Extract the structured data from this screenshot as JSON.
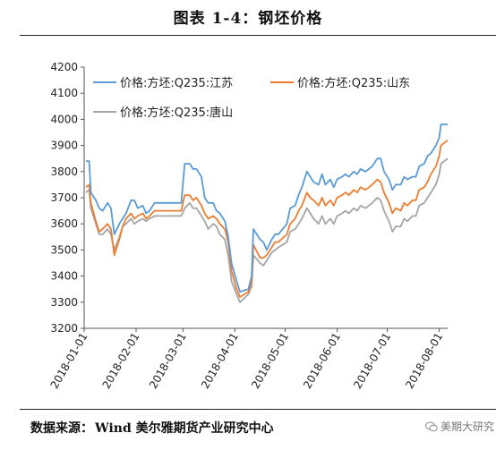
{
  "title": "图表 1-4：钢坯价格",
  "source": {
    "label": "数据来源：",
    "text": "Wind  美尔雅期货产业研究中心"
  },
  "watermark": "美期大研究",
  "chart_data": {
    "type": "line",
    "title": "",
    "ylim": [
      3200,
      4200
    ],
    "yticks": [
      3200,
      3300,
      3400,
      3500,
      3600,
      3700,
      3800,
      3900,
      4000,
      4100,
      4200
    ],
    "xticks": [
      "2018-01-01",
      "2018-02-01",
      "2018-03-01",
      "2018-04-01",
      "2018-05-01",
      "2018-06-01",
      "2018-07-01",
      "2018-08-01"
    ],
    "xlim": [
      "2018-01-01",
      "2018-08-06"
    ],
    "grid": false,
    "legend_position": "top-left",
    "colors": {
      "jiangsu": "#5B9BD5",
      "shandong": "#ED7D31",
      "tangshan": "#A5A5A5"
    },
    "series": [
      {
        "name": "价格:方坯:Q235:江苏",
        "points": [
          [
            "2018-01-02",
            3840
          ],
          [
            "2018-01-04",
            3840
          ],
          [
            "2018-01-05",
            3720
          ],
          [
            "2018-01-08",
            3690
          ],
          [
            "2018-01-10",
            3660
          ],
          [
            "2018-01-12",
            3650
          ],
          [
            "2018-01-15",
            3680
          ],
          [
            "2018-01-17",
            3660
          ],
          [
            "2018-01-19",
            3560
          ],
          [
            "2018-01-22",
            3600
          ],
          [
            "2018-01-24",
            3620
          ],
          [
            "2018-01-26",
            3640
          ],
          [
            "2018-01-29",
            3690
          ],
          [
            "2018-01-31",
            3690
          ],
          [
            "2018-02-02",
            3660
          ],
          [
            "2018-02-05",
            3670
          ],
          [
            "2018-02-07",
            3640
          ],
          [
            "2018-02-09",
            3650
          ],
          [
            "2018-02-12",
            3680
          ],
          [
            "2018-02-14",
            3680
          ],
          [
            "2018-02-26",
            3680
          ],
          [
            "2018-02-28",
            3680
          ],
          [
            "2018-03-02",
            3830
          ],
          [
            "2018-03-05",
            3830
          ],
          [
            "2018-03-07",
            3810
          ],
          [
            "2018-03-09",
            3810
          ],
          [
            "2018-03-12",
            3780
          ],
          [
            "2018-03-14",
            3700
          ],
          [
            "2018-03-16",
            3680
          ],
          [
            "2018-03-19",
            3680
          ],
          [
            "2018-03-21",
            3650
          ],
          [
            "2018-03-23",
            3640
          ],
          [
            "2018-03-26",
            3610
          ],
          [
            "2018-03-28",
            3550
          ],
          [
            "2018-03-30",
            3450
          ],
          [
            "2018-04-02",
            3380
          ],
          [
            "2018-04-04",
            3340
          ],
          [
            "2018-04-09",
            3350
          ],
          [
            "2018-04-11",
            3400
          ],
          [
            "2018-04-12",
            3580
          ],
          [
            "2018-04-16",
            3540
          ],
          [
            "2018-04-18",
            3530
          ],
          [
            "2018-04-20",
            3500
          ],
          [
            "2018-04-23",
            3540
          ],
          [
            "2018-04-25",
            3560
          ],
          [
            "2018-04-27",
            3560
          ],
          [
            "2018-05-02",
            3600
          ],
          [
            "2018-05-04",
            3660
          ],
          [
            "2018-05-07",
            3670
          ],
          [
            "2018-05-09",
            3710
          ],
          [
            "2018-05-11",
            3740
          ],
          [
            "2018-05-14",
            3800
          ],
          [
            "2018-05-16",
            3780
          ],
          [
            "2018-05-18",
            3760
          ],
          [
            "2018-05-21",
            3750
          ],
          [
            "2018-05-23",
            3790
          ],
          [
            "2018-05-25",
            3750
          ],
          [
            "2018-05-28",
            3770
          ],
          [
            "2018-05-30",
            3740
          ],
          [
            "2018-06-01",
            3770
          ],
          [
            "2018-06-04",
            3780
          ],
          [
            "2018-06-06",
            3790
          ],
          [
            "2018-06-08",
            3780
          ],
          [
            "2018-06-11",
            3800
          ],
          [
            "2018-06-13",
            3790
          ],
          [
            "2018-06-15",
            3810
          ],
          [
            "2018-06-18",
            3800
          ],
          [
            "2018-06-20",
            3810
          ],
          [
            "2018-06-22",
            3820
          ],
          [
            "2018-06-25",
            3850
          ],
          [
            "2018-06-27",
            3850
          ],
          [
            "2018-06-29",
            3800
          ],
          [
            "2018-07-02",
            3770
          ],
          [
            "2018-07-04",
            3730
          ],
          [
            "2018-07-06",
            3750
          ],
          [
            "2018-07-09",
            3750
          ],
          [
            "2018-07-11",
            3780
          ],
          [
            "2018-07-13",
            3770
          ],
          [
            "2018-07-16",
            3780
          ],
          [
            "2018-07-18",
            3780
          ],
          [
            "2018-07-20",
            3820
          ],
          [
            "2018-07-23",
            3830
          ],
          [
            "2018-07-25",
            3860
          ],
          [
            "2018-07-27",
            3870
          ],
          [
            "2018-07-30",
            3900
          ],
          [
            "2018-08-01",
            3930
          ],
          [
            "2018-08-02",
            3980
          ],
          [
            "2018-08-06",
            3980
          ]
        ]
      },
      {
        "name": "价格:方坯:Q235:山东",
        "points": [
          [
            "2018-01-02",
            3740
          ],
          [
            "2018-01-04",
            3750
          ],
          [
            "2018-01-05",
            3680
          ],
          [
            "2018-01-08",
            3610
          ],
          [
            "2018-01-10",
            3570
          ],
          [
            "2018-01-12",
            3580
          ],
          [
            "2018-01-15",
            3600
          ],
          [
            "2018-01-17",
            3580
          ],
          [
            "2018-01-19",
            3480
          ],
          [
            "2018-01-22",
            3540
          ],
          [
            "2018-01-24",
            3590
          ],
          [
            "2018-01-26",
            3620
          ],
          [
            "2018-01-29",
            3640
          ],
          [
            "2018-01-31",
            3620
          ],
          [
            "2018-02-02",
            3630
          ],
          [
            "2018-02-05",
            3640
          ],
          [
            "2018-02-07",
            3620
          ],
          [
            "2018-02-09",
            3630
          ],
          [
            "2018-02-12",
            3650
          ],
          [
            "2018-02-14",
            3650
          ],
          [
            "2018-02-26",
            3650
          ],
          [
            "2018-02-28",
            3650
          ],
          [
            "2018-03-02",
            3710
          ],
          [
            "2018-03-05",
            3710
          ],
          [
            "2018-03-07",
            3690
          ],
          [
            "2018-03-09",
            3700
          ],
          [
            "2018-03-12",
            3670
          ],
          [
            "2018-03-14",
            3640
          ],
          [
            "2018-03-16",
            3620
          ],
          [
            "2018-03-19",
            3630
          ],
          [
            "2018-03-21",
            3620
          ],
          [
            "2018-03-23",
            3600
          ],
          [
            "2018-03-26",
            3580
          ],
          [
            "2018-03-28",
            3530
          ],
          [
            "2018-03-30",
            3420
          ],
          [
            "2018-04-02",
            3350
          ],
          [
            "2018-04-04",
            3320
          ],
          [
            "2018-04-09",
            3340
          ],
          [
            "2018-04-11",
            3380
          ],
          [
            "2018-04-12",
            3520
          ],
          [
            "2018-04-16",
            3470
          ],
          [
            "2018-04-18",
            3470
          ],
          [
            "2018-04-20",
            3480
          ],
          [
            "2018-04-23",
            3510
          ],
          [
            "2018-04-25",
            3530
          ],
          [
            "2018-04-27",
            3530
          ],
          [
            "2018-05-02",
            3560
          ],
          [
            "2018-05-04",
            3600
          ],
          [
            "2018-05-07",
            3620
          ],
          [
            "2018-05-09",
            3650
          ],
          [
            "2018-05-11",
            3670
          ],
          [
            "2018-05-14",
            3720
          ],
          [
            "2018-05-16",
            3700
          ],
          [
            "2018-05-18",
            3690
          ],
          [
            "2018-05-21",
            3670
          ],
          [
            "2018-05-23",
            3700
          ],
          [
            "2018-05-25",
            3670
          ],
          [
            "2018-05-28",
            3690
          ],
          [
            "2018-05-30",
            3670
          ],
          [
            "2018-06-01",
            3700
          ],
          [
            "2018-06-04",
            3710
          ],
          [
            "2018-06-06",
            3720
          ],
          [
            "2018-06-08",
            3710
          ],
          [
            "2018-06-11",
            3730
          ],
          [
            "2018-06-13",
            3720
          ],
          [
            "2018-06-15",
            3740
          ],
          [
            "2018-06-18",
            3730
          ],
          [
            "2018-06-20",
            3740
          ],
          [
            "2018-06-22",
            3750
          ],
          [
            "2018-06-25",
            3770
          ],
          [
            "2018-06-27",
            3760
          ],
          [
            "2018-06-29",
            3720
          ],
          [
            "2018-07-02",
            3680
          ],
          [
            "2018-07-04",
            3640
          ],
          [
            "2018-07-06",
            3660
          ],
          [
            "2018-07-09",
            3650
          ],
          [
            "2018-07-11",
            3680
          ],
          [
            "2018-07-13",
            3670
          ],
          [
            "2018-07-16",
            3690
          ],
          [
            "2018-07-18",
            3690
          ],
          [
            "2018-07-20",
            3730
          ],
          [
            "2018-07-23",
            3740
          ],
          [
            "2018-07-25",
            3760
          ],
          [
            "2018-07-27",
            3790
          ],
          [
            "2018-07-30",
            3820
          ],
          [
            "2018-08-01",
            3860
          ],
          [
            "2018-08-02",
            3900
          ],
          [
            "2018-08-06",
            3920
          ]
        ]
      },
      {
        "name": "价格:方坯:Q235:唐山",
        "points": [
          [
            "2018-01-02",
            3720
          ],
          [
            "2018-01-04",
            3730
          ],
          [
            "2018-01-05",
            3660
          ],
          [
            "2018-01-08",
            3600
          ],
          [
            "2018-01-10",
            3560
          ],
          [
            "2018-01-12",
            3560
          ],
          [
            "2018-01-15",
            3580
          ],
          [
            "2018-01-17",
            3560
          ],
          [
            "2018-01-19",
            3500
          ],
          [
            "2018-01-22",
            3550
          ],
          [
            "2018-01-24",
            3590
          ],
          [
            "2018-01-26",
            3600
          ],
          [
            "2018-01-29",
            3620
          ],
          [
            "2018-01-31",
            3600
          ],
          [
            "2018-02-02",
            3610
          ],
          [
            "2018-02-05",
            3620
          ],
          [
            "2018-02-07",
            3610
          ],
          [
            "2018-02-09",
            3620
          ],
          [
            "2018-02-12",
            3630
          ],
          [
            "2018-02-14",
            3630
          ],
          [
            "2018-02-26",
            3630
          ],
          [
            "2018-02-28",
            3630
          ],
          [
            "2018-03-02",
            3660
          ],
          [
            "2018-03-05",
            3680
          ],
          [
            "2018-03-07",
            3660
          ],
          [
            "2018-03-09",
            3660
          ],
          [
            "2018-03-12",
            3630
          ],
          [
            "2018-03-14",
            3610
          ],
          [
            "2018-03-16",
            3580
          ],
          [
            "2018-03-19",
            3600
          ],
          [
            "2018-03-21",
            3590
          ],
          [
            "2018-03-23",
            3560
          ],
          [
            "2018-03-26",
            3540
          ],
          [
            "2018-03-28",
            3480
          ],
          [
            "2018-03-30",
            3380
          ],
          [
            "2018-04-02",
            3330
          ],
          [
            "2018-04-04",
            3300
          ],
          [
            "2018-04-09",
            3330
          ],
          [
            "2018-04-11",
            3360
          ],
          [
            "2018-04-12",
            3480
          ],
          [
            "2018-04-16",
            3450
          ],
          [
            "2018-04-18",
            3440
          ],
          [
            "2018-04-20",
            3460
          ],
          [
            "2018-04-23",
            3490
          ],
          [
            "2018-04-25",
            3500
          ],
          [
            "2018-04-27",
            3510
          ],
          [
            "2018-05-02",
            3530
          ],
          [
            "2018-05-04",
            3570
          ],
          [
            "2018-05-07",
            3580
          ],
          [
            "2018-05-09",
            3600
          ],
          [
            "2018-05-11",
            3620
          ],
          [
            "2018-05-14",
            3660
          ],
          [
            "2018-05-16",
            3640
          ],
          [
            "2018-05-18",
            3620
          ],
          [
            "2018-05-21",
            3600
          ],
          [
            "2018-05-23",
            3630
          ],
          [
            "2018-05-25",
            3600
          ],
          [
            "2018-05-28",
            3620
          ],
          [
            "2018-05-30",
            3600
          ],
          [
            "2018-06-01",
            3630
          ],
          [
            "2018-06-04",
            3640
          ],
          [
            "2018-06-06",
            3650
          ],
          [
            "2018-06-08",
            3640
          ],
          [
            "2018-06-11",
            3660
          ],
          [
            "2018-06-13",
            3650
          ],
          [
            "2018-06-15",
            3670
          ],
          [
            "2018-06-18",
            3660
          ],
          [
            "2018-06-20",
            3670
          ],
          [
            "2018-06-22",
            3680
          ],
          [
            "2018-06-25",
            3700
          ],
          [
            "2018-06-27",
            3690
          ],
          [
            "2018-06-29",
            3650
          ],
          [
            "2018-07-02",
            3610
          ],
          [
            "2018-07-04",
            3570
          ],
          [
            "2018-07-06",
            3590
          ],
          [
            "2018-07-09",
            3590
          ],
          [
            "2018-07-11",
            3620
          ],
          [
            "2018-07-13",
            3610
          ],
          [
            "2018-07-16",
            3630
          ],
          [
            "2018-07-18",
            3630
          ],
          [
            "2018-07-20",
            3670
          ],
          [
            "2018-07-23",
            3680
          ],
          [
            "2018-07-25",
            3700
          ],
          [
            "2018-07-27",
            3720
          ],
          [
            "2018-07-30",
            3750
          ],
          [
            "2018-08-01",
            3790
          ],
          [
            "2018-08-02",
            3830
          ],
          [
            "2018-08-06",
            3850
          ]
        ]
      }
    ]
  }
}
